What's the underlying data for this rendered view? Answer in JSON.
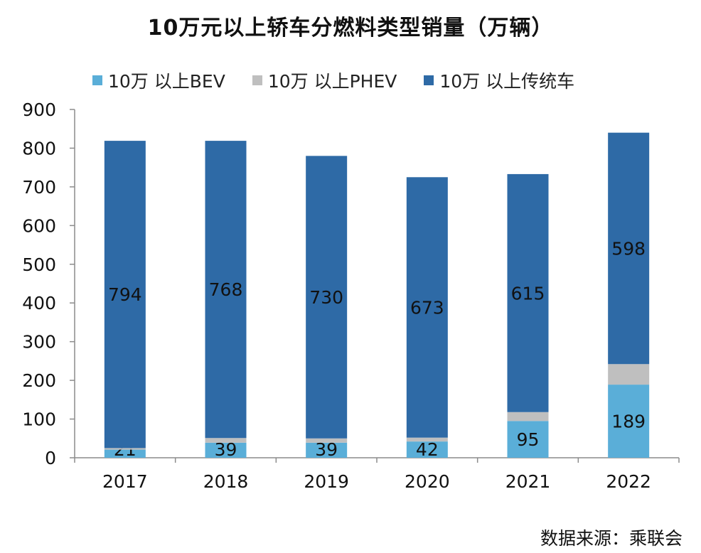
{
  "chart_data": {
    "type": "bar",
    "stacked": true,
    "title": "10万元以上轿车分燃料类型销量（万辆）",
    "categories": [
      "2017",
      "2018",
      "2019",
      "2020",
      "2021",
      "2022"
    ],
    "series": [
      {
        "name": "10万 以上BEV",
        "color": "#5aaed8",
        "values": [
          21,
          39,
          39,
          42,
          95,
          189
        ]
      },
      {
        "name": "10万 以上PHEV",
        "color": "#bfbfbf",
        "values": [
          4,
          12,
          11,
          10,
          23,
          53
        ]
      },
      {
        "name": "10万 以上传统车",
        "color": "#2e6aa6",
        "values": [
          794,
          768,
          730,
          673,
          615,
          598
        ]
      }
    ],
    "ylim": [
      0,
      900
    ],
    "yticks": [
      0,
      100,
      200,
      300,
      400,
      500,
      600,
      700,
      800,
      900
    ],
    "grid": false,
    "legend": "top"
  },
  "source": "数据来源：乘联会"
}
